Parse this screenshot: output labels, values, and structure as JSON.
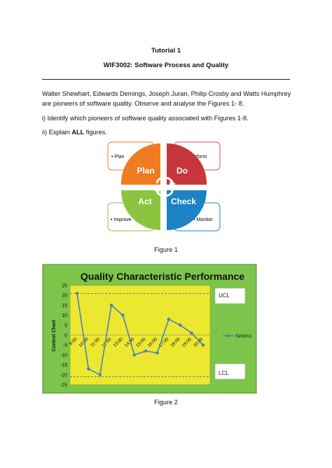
{
  "document": {
    "title": "Tutorial 1",
    "subtitle": "WIF3002: Software Process and Quality",
    "intro": "Walter Shewhart, Edwards Demings, Joseph Juran, Philip Crosby and Watts Humphrey are pioneers of software quality. Observe and analyse the Figures 1- 8.",
    "q1": "i)  Identify which pioneers of software quality associated with Figures 1-8.",
    "q2_prefix": "ii) Explain ",
    "q2_bold": "ALL",
    "q2_suffix": " figures."
  },
  "figure1": {
    "caption": "Figure 1",
    "quadrants": [
      {
        "label": "Plan",
        "color": "#f07c22"
      },
      {
        "label": "Do",
        "color": "#c8363d"
      },
      {
        "label": "Act",
        "color": "#8bc53f"
      },
      {
        "label": "Check",
        "color": "#1b83c6"
      }
    ],
    "boxes": [
      "• Plan",
      "• Perform",
      "• Improve",
      "• Monitor"
    ]
  },
  "figure2": {
    "caption": "Figure 2",
    "colors": {
      "outer": "#7dc54a",
      "plot": "#ece830",
      "line": "#4a7fc3",
      "limit": "#3f5f9e"
    },
    "ucl_label": "UCL",
    "lcl_label": "LCL"
  },
  "chart_data": {
    "type": "line",
    "title": "Quality Characteristic Performance",
    "ylabel": "Control Chart",
    "xlabel": "",
    "ylim": [
      -25,
      25
    ],
    "yticks": [
      25,
      20,
      15,
      10,
      5,
      0,
      -5,
      -10,
      -15,
      -20,
      -25
    ],
    "categories": [
      "9:00",
      "10:00",
      "11:00",
      "12:00",
      "13:00",
      "14:00",
      "15:00",
      "16:00",
      "17:00",
      "18:00",
      "19:00",
      "20:00"
    ],
    "series": [
      {
        "name": "Series1",
        "values": [
          21,
          -17,
          -20,
          15,
          10,
          -10,
          -8,
          -9,
          8,
          5,
          1,
          -5
        ]
      }
    ],
    "ucl": 21,
    "lcl": -21,
    "legend": "right",
    "grid": false
  }
}
